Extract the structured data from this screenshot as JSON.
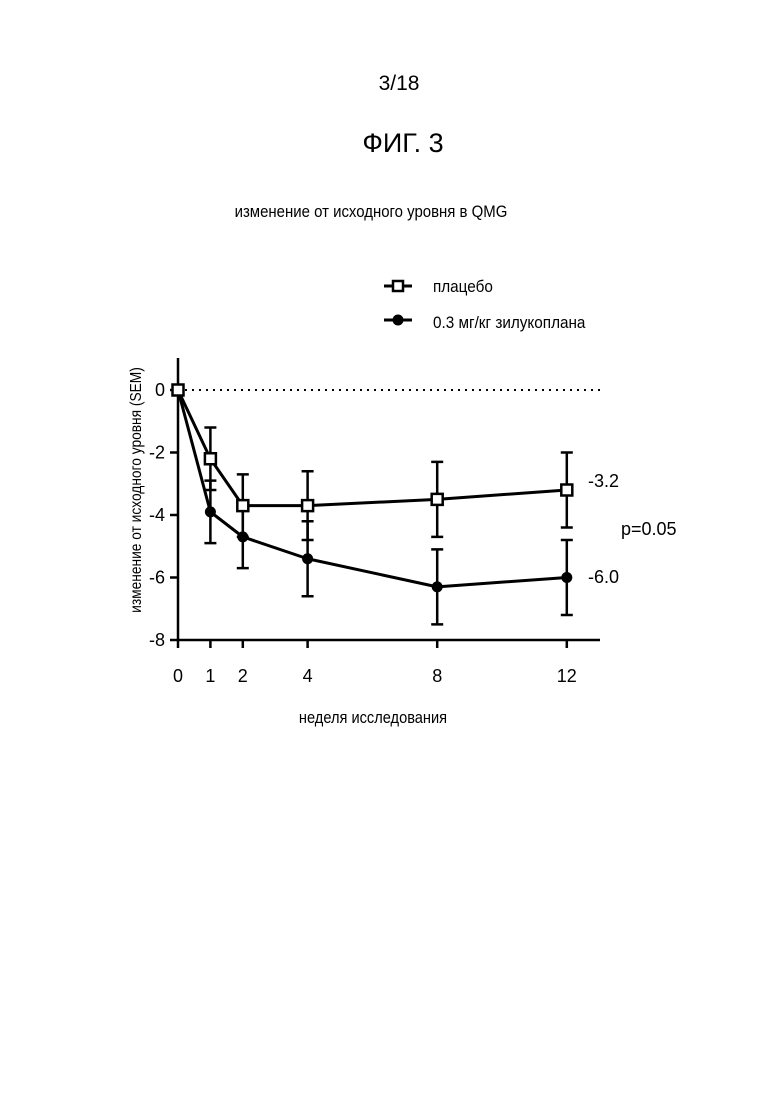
{
  "page": {
    "page_number": "3/18",
    "figure_label": "ФИГ. 3"
  },
  "chart_data": {
    "type": "line",
    "title": "изменение от исходного уровня в QMG",
    "xlabel": "неделя исследования",
    "ylabel": "изменение от исходного уровня (SEM)",
    "x": [
      0,
      1,
      2,
      4,
      8,
      12
    ],
    "x_ticks": [
      0,
      1,
      2,
      4,
      8,
      12
    ],
    "y_ticks": [
      0,
      -2,
      -4,
      -6,
      -8
    ],
    "xlim": [
      0,
      13
    ],
    "ylim": [
      -8,
      1
    ],
    "reference_line": {
      "y": 0,
      "style": "dotted"
    },
    "legend_position": "top-right",
    "series": [
      {
        "name": "плацебо",
        "marker": "open-square",
        "values": [
          0,
          -2.2,
          -3.7,
          -3.7,
          -3.5,
          -3.2
        ],
        "error": [
          0,
          1.0,
          1.0,
          1.1,
          1.2,
          1.2
        ]
      },
      {
        "name": "0.3 мг/кг зилукоплана",
        "marker": "filled-circle",
        "values": [
          0,
          -3.9,
          -4.7,
          -5.4,
          -6.3,
          -6.0
        ],
        "error": [
          0,
          1.0,
          1.0,
          1.2,
          1.2,
          1.2
        ]
      }
    ],
    "annotations": [
      "-3.2",
      "p=0.05",
      "-6.0"
    ],
    "colors": {
      "line": "#000000",
      "background": "#ffffff"
    }
  }
}
